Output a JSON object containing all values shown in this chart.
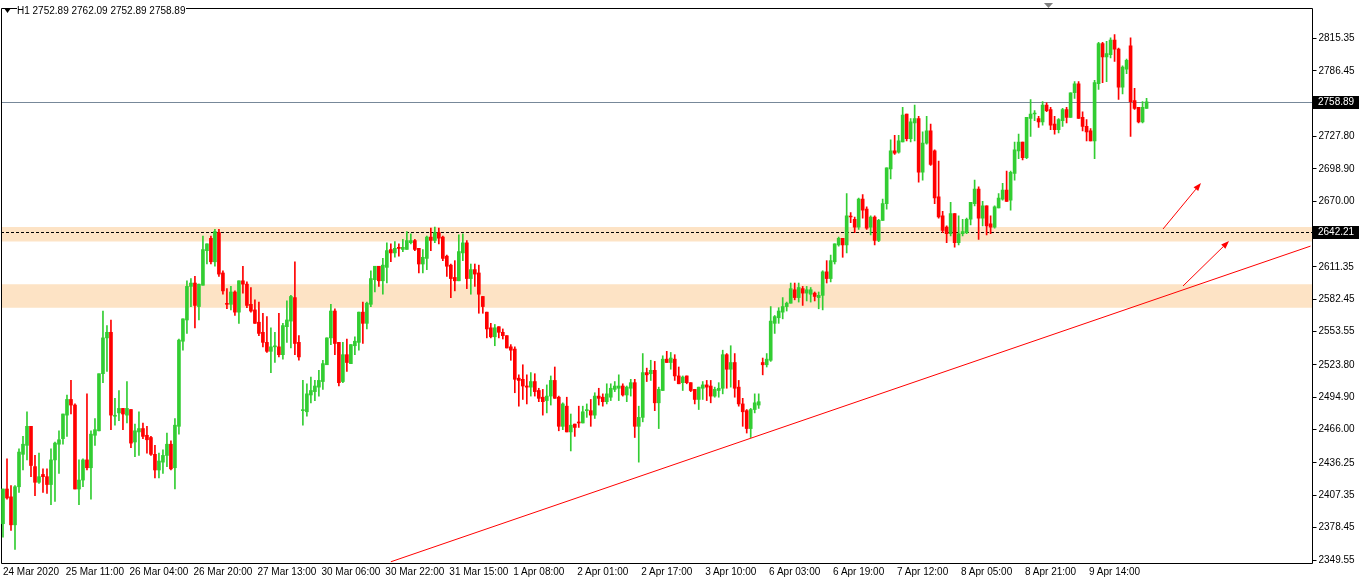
{
  "chart_data": {
    "type": "candlestick",
    "title": "H1 2752.89 2762.09 2752.89 2758.89",
    "categories": [
      null,
      null,
      null,
      null,
      null,
      null,
      null,
      "24 Mar 2020",
      null,
      null,
      null,
      null,
      null,
      null,
      null,
      null,
      null,
      null,
      null,
      null,
      null,
      null,
      null,
      "25 Mar 11:00",
      null,
      null,
      null,
      null,
      null,
      null,
      null,
      null,
      null,
      null,
      null,
      null,
      null,
      null,
      null,
      "26 Mar 04:00",
      null,
      null,
      null,
      null,
      null,
      null,
      null,
      null,
      null,
      null,
      null,
      null,
      null,
      null,
      null,
      "26 Mar 20:00",
      null,
      null,
      null,
      null,
      null,
      null,
      null,
      null,
      null,
      null,
      null,
      null,
      null,
      null,
      null,
      "27 Mar 13:00",
      null,
      null,
      null,
      null,
      null,
      null,
      null,
      null,
      null,
      null,
      null,
      null,
      null,
      null,
      null,
      "30 Mar 06:00",
      null,
      null,
      null,
      null,
      null,
      null,
      null,
      null,
      null,
      null,
      null,
      null,
      null,
      null,
      null,
      "30 Mar 22:00",
      null,
      null,
      null,
      null,
      null,
      null,
      null,
      null,
      null,
      null,
      null,
      null,
      null,
      null,
      null,
      "31 Mar 15:00",
      null,
      null,
      null,
      null,
      null,
      null,
      null,
      null,
      null,
      null,
      null,
      null,
      null,
      null,
      "1 Apr 08:00",
      null,
      null,
      null,
      null,
      null,
      null,
      null,
      null,
      null,
      null,
      null,
      null,
      null,
      null,
      null,
      "2 Apr 01:00",
      null,
      null,
      null,
      null,
      null,
      null,
      null,
      null,
      null,
      null,
      null,
      null,
      null,
      null,
      null,
      "2 Apr 17:00",
      null,
      null,
      null,
      null,
      null,
      null,
      null,
      null,
      null,
      null,
      null,
      null,
      null,
      null,
      null,
      "3 Apr 10:00",
      null,
      null,
      null,
      null,
      null,
      null,
      null,
      null,
      null,
      null,
      null,
      null,
      null,
      null,
      null,
      "6 Apr 03:00",
      null,
      null,
      null,
      null,
      null,
      null,
      null,
      null,
      null,
      null,
      null,
      null,
      null,
      null,
      null,
      "6 Apr 19:00",
      null,
      null,
      null,
      null,
      null,
      null,
      null,
      null,
      null,
      null,
      null,
      null,
      null,
      null,
      null,
      "7 Apr 12:00",
      null,
      null,
      null,
      null,
      null,
      null,
      null,
      null,
      null,
      null,
      null,
      null,
      null,
      null,
      null,
      "8 Apr 05:00",
      null,
      null,
      null,
      null,
      null,
      null,
      null,
      null,
      null,
      null,
      null,
      null,
      null,
      null,
      null,
      "8 Apr 21:00",
      null,
      null,
      null,
      null,
      null,
      null,
      null,
      null,
      null,
      null,
      null,
      null,
      null,
      null,
      null,
      "9 Apr 14:00",
      null,
      null,
      null,
      null,
      null,
      null,
      null,
      null,
      null,
      null,
      null,
      null,
      null,
      null,
      null,
      null,
      null,
      null,
      null,
      null,
      null,
      null,
      null,
      null,
      null,
      null,
      null,
      null,
      null,
      null,
      null,
      null,
      null,
      null,
      null,
      null,
      null,
      null,
      null,
      null,
      null,
      null,
      null,
      null,
      null,
      null,
      null,
      null,
      null
    ],
    "ohlc": [
      [
        2382,
        2413,
        2370,
        2413
      ],
      [
        2413,
        2440,
        2404,
        2405
      ],
      [
        2406,
        2416,
        2376,
        2381
      ],
      [
        2381,
        2416,
        2359,
        2415
      ],
      [
        2415,
        2449,
        2410,
        2446
      ],
      [
        2444,
        2460,
        2430,
        2453
      ],
      [
        2452,
        2482,
        2439,
        2469
      ],
      [
        2469,
        2469,
        2424,
        2434
      ],
      [
        2433,
        2443,
        2407,
        2419
      ],
      [
        2419,
        2445,
        2418,
        2424
      ],
      [
        2426,
        2431,
        2410,
        2424
      ],
      [
        2424,
        2431,
        2409,
        2417
      ],
      [
        2417,
        2449,
        2399,
        2439
      ],
      [
        2439,
        2455,
        2402,
        2454
      ],
      [
        2453,
        2465,
        2427,
        2457
      ],
      [
        2458,
        2480,
        2453,
        2480
      ],
      [
        2479,
        2497,
        2460,
        2493
      ],
      [
        2493,
        2510,
        2480,
        2488
      ],
      [
        2488,
        2489,
        2413,
        2413
      ],
      [
        2413,
        2439,
        2399,
        2421
      ],
      [
        2421,
        2440,
        2415,
        2439
      ],
      [
        2439,
        2498,
        2430,
        2432
      ],
      [
        2432,
        2465,
        2404,
        2462
      ],
      [
        2461,
        2476,
        2452,
        2466
      ],
      [
        2465,
        2516,
        2465,
        2516
      ],
      [
        2516,
        2572,
        2508,
        2548
      ],
      [
        2548,
        2559,
        2518,
        2553
      ],
      [
        2553,
        2564,
        2466,
        2479
      ],
      [
        2478,
        2494,
        2470,
        2478
      ],
      [
        2481,
        2501,
        2474,
        2485
      ],
      [
        2485,
        2485,
        2466,
        2480
      ],
      [
        2479,
        2509,
        2472,
        2485
      ],
      [
        2484,
        2484,
        2450,
        2454
      ],
      [
        2455,
        2471,
        2442,
        2465
      ],
      [
        2464,
        2482,
        2443,
        2467
      ],
      [
        2467,
        2472,
        2458,
        2460
      ],
      [
        2461,
        2469,
        2445,
        2457
      ],
      [
        2459,
        2460,
        2443,
        2444
      ],
      [
        2444,
        2452,
        2423,
        2430
      ],
      [
        2430,
        2445,
        2423,
        2438
      ],
      [
        2437,
        2448,
        2427,
        2443
      ],
      [
        2443,
        2463,
        2433,
        2453
      ],
      [
        2453,
        2456,
        2430,
        2431
      ],
      [
        2432,
        2476,
        2413,
        2470
      ],
      [
        2469,
        2547,
        2462,
        2546
      ],
      [
        2545,
        2565,
        2537,
        2565
      ],
      [
        2564,
        2599,
        2552,
        2594
      ],
      [
        2594,
        2601,
        2576,
        2597
      ],
      [
        2597,
        2603,
        2557,
        2577
      ],
      [
        2576,
        2596,
        2564,
        2596
      ],
      [
        2595,
        2639,
        2595,
        2627
      ],
      [
        2626,
        2632,
        2614,
        2632
      ],
      [
        2637,
        2639,
        2614,
        2616
      ],
      [
        2616,
        2645,
        2612,
        2643
      ],
      [
        2642,
        2645,
        2603,
        2605
      ],
      [
        2606,
        2608,
        2587,
        2590
      ],
      [
        2578,
        2592,
        2574,
        2578
      ],
      [
        2578,
        2594,
        2573,
        2589
      ],
      [
        2589,
        2590,
        2568,
        2571
      ],
      [
        2571,
        2599,
        2561,
        2599
      ],
      [
        2599,
        2612,
        2588,
        2596
      ],
      [
        2596,
        2598,
        2575,
        2577
      ],
      [
        2578,
        2593,
        2571,
        2572
      ],
      [
        2573,
        2582,
        2561,
        2561
      ],
      [
        2562,
        2580,
        2550,
        2552
      ],
      [
        2553,
        2570,
        2540,
        2544
      ],
      [
        2544,
        2567,
        2535,
        2536
      ],
      [
        2536,
        2557,
        2517,
        2540
      ],
      [
        2540,
        2553,
        2526,
        2540
      ],
      [
        2540,
        2570,
        2531,
        2533
      ],
      [
        2533,
        2561,
        2529,
        2559
      ],
      [
        2558,
        2581,
        2544,
        2564
      ],
      [
        2563,
        2586,
        2539,
        2585
      ],
      [
        2584,
        2616,
        2533,
        2543
      ],
      [
        2544,
        2550,
        2528,
        2531
      ],
      [
        2483,
        2510,
        2470,
        2483
      ],
      [
        2482,
        2507,
        2478,
        2498
      ],
      [
        2497,
        2513,
        2490,
        2501
      ],
      [
        2500,
        2510,
        2492,
        2505
      ],
      [
        2504,
        2519,
        2496,
        2510
      ],
      [
        2509,
        2528,
        2502,
        2525
      ],
      [
        2524,
        2548,
        2524,
        2548
      ],
      [
        2548,
        2578,
        2542,
        2572
      ],
      [
        2572,
        2574,
        2533,
        2543
      ],
      [
        2544,
        2544,
        2505,
        2508
      ],
      [
        2509,
        2544,
        2508,
        2533
      ],
      [
        2533,
        2547,
        2518,
        2526
      ],
      [
        2525,
        2542,
        2525,
        2542
      ],
      [
        2541,
        2549,
        2533,
        2545
      ],
      [
        2544,
        2571,
        2537,
        2571
      ],
      [
        2571,
        2580,
        2543,
        2561
      ],
      [
        2561,
        2580,
        2556,
        2579
      ],
      [
        2578,
        2608,
        2576,
        2601
      ],
      [
        2600,
        2612,
        2589,
        2612
      ],
      [
        2612,
        2612,
        2594,
        2599
      ],
      [
        2599,
        2619,
        2587,
        2613
      ],
      [
        2611,
        2633,
        2597,
        2626
      ],
      [
        2627,
        2632,
        2616,
        2624
      ],
      [
        2624,
        2634,
        2620,
        2628
      ],
      [
        2628,
        2632,
        2621,
        2628
      ],
      [
        2627,
        2636,
        2625,
        2629
      ],
      [
        2627,
        2643,
        2627,
        2635
      ],
      [
        2633,
        2641,
        2632,
        2635
      ],
      [
        2635,
        2636,
        2626,
        2627
      ],
      [
        2628,
        2628,
        2606,
        2614
      ],
      [
        2614,
        2627,
        2606,
        2620
      ],
      [
        2619,
        2639,
        2609,
        2638
      ],
      [
        2638,
        2646,
        2626,
        2635
      ],
      [
        2635,
        2647,
        2633,
        2642
      ],
      [
        2642,
        2646,
        2632,
        2637
      ],
      [
        2638,
        2639,
        2617,
        2619
      ],
      [
        2621,
        2622,
        2603,
        2612
      ],
      [
        2613,
        2614,
        2584,
        2601
      ],
      [
        2602,
        2617,
        2590,
        2599
      ],
      [
        2599,
        2640,
        2599,
        2625
      ],
      [
        2624,
        2641,
        2617,
        2633
      ],
      [
        2633,
        2635,
        2592,
        2601
      ],
      [
        2601,
        2614,
        2587,
        2609
      ],
      [
        2609,
        2614,
        2594,
        2605
      ],
      [
        2606,
        2613,
        2570,
        2587
      ],
      [
        2585,
        2585,
        2570,
        2576
      ],
      [
        2571,
        2571,
        2548,
        2556
      ],
      [
        2557,
        2561,
        2548,
        2549
      ],
      [
        2549,
        2560,
        2541,
        2557
      ],
      [
        2558,
        2558,
        2548,
        2553
      ],
      [
        2553,
        2556,
        2547,
        2550
      ],
      [
        2550,
        2550,
        2539,
        2539
      ],
      [
        2540,
        2542,
        2528,
        2537
      ],
      [
        2538,
        2540,
        2499,
        2511
      ],
      [
        2512,
        2515,
        2487,
        2510
      ],
      [
        2511,
        2524,
        2493,
        2505
      ],
      [
        2505,
        2515,
        2489,
        2504
      ],
      [
        2504,
        2517,
        2496,
        2509
      ],
      [
        2509,
        2516,
        2496,
        2500
      ],
      [
        2501,
        2503,
        2491,
        2494
      ],
      [
        2495,
        2502,
        2479,
        2491
      ],
      [
        2492,
        2506,
        2481,
        2496
      ],
      [
        2496,
        2514,
        2488,
        2510
      ],
      [
        2510,
        2522,
        2494,
        2494
      ],
      [
        2495,
        2496,
        2465,
        2469
      ],
      [
        2469,
        2490,
        2466,
        2489
      ],
      [
        2487,
        2495,
        2464,
        2464
      ],
      [
        2464,
        2480,
        2447,
        2470
      ],
      [
        2471,
        2471,
        2460,
        2468
      ],
      [
        2472,
        2487,
        2468,
        2472
      ],
      [
        2472,
        2487,
        2472,
        2482
      ],
      [
        2483,
        2489,
        2477,
        2483
      ],
      [
        2483,
        2493,
        2469,
        2479
      ],
      [
        2479,
        2499,
        2476,
        2496
      ],
      [
        2496,
        2503,
        2488,
        2494
      ],
      [
        2495,
        2498,
        2487,
        2491
      ],
      [
        2491,
        2507,
        2489,
        2498
      ],
      [
        2495,
        2507,
        2492,
        2503
      ],
      [
        2502,
        2509,
        2500,
        2505
      ],
      [
        2503,
        2515,
        2492,
        2505
      ],
      [
        2505,
        2507,
        2496,
        2497
      ],
      [
        2497,
        2505,
        2491,
        2504
      ],
      [
        2503,
        2511,
        2496,
        2508
      ],
      [
        2508,
        2511,
        2459,
        2469
      ],
      [
        2469,
        2487,
        2437,
        2477
      ],
      [
        2477,
        2534,
        2473,
        2517
      ],
      [
        2517,
        2521,
        2509,
        2515
      ],
      [
        2516,
        2528,
        2510,
        2519
      ],
      [
        2519,
        2527,
        2483,
        2490
      ],
      [
        2490,
        2504,
        2467,
        2502
      ],
      [
        2501,
        2532,
        2501,
        2529
      ],
      [
        2529,
        2536,
        2526,
        2526
      ],
      [
        2526,
        2535,
        2520,
        2530
      ],
      [
        2529,
        2533,
        2510,
        2514
      ],
      [
        2514,
        2522,
        2507,
        2507
      ],
      [
        2508,
        2514,
        2501,
        2513
      ],
      [
        2514,
        2514,
        2507,
        2508
      ],
      [
        2508,
        2508,
        2500,
        2501
      ],
      [
        2502,
        2502,
        2489,
        2493
      ],
      [
        2493,
        2504,
        2484,
        2504
      ],
      [
        2503,
        2509,
        2493,
        2506
      ],
      [
        2506,
        2510,
        2492,
        2504
      ],
      [
        2505,
        2510,
        2490,
        2496
      ],
      [
        2496,
        2504,
        2495,
        2502
      ],
      [
        2501,
        2508,
        2495,
        2503
      ],
      [
        2503,
        2537,
        2498,
        2533
      ],
      [
        2533,
        2534,
        2503,
        2520
      ],
      [
        2520,
        2541,
        2504,
        2526
      ],
      [
        2526,
        2534,
        2495,
        2503
      ],
      [
        2504,
        2510,
        2487,
        2489
      ],
      [
        2489,
        2494,
        2469,
        2482
      ],
      [
        2483,
        2484,
        2463,
        2467
      ],
      [
        2467,
        2485,
        2459,
        2484
      ],
      [
        2484,
        2498,
        2481,
        2490
      ],
      [
        2488,
        2498,
        2485,
        2491
      ],
      [
        2526,
        2530,
        2515,
        2524
      ],
      [
        2524,
        2534,
        2522,
        2529
      ],
      [
        2528,
        2576,
        2527,
        2563
      ],
      [
        2561,
        2568,
        2552,
        2567
      ],
      [
        2566,
        2575,
        2561,
        2572
      ],
      [
        2571,
        2584,
        2565,
        2576
      ],
      [
        2576,
        2580,
        2572,
        2579
      ],
      [
        2579,
        2597,
        2579,
        2592
      ],
      [
        2591,
        2597,
        2582,
        2584
      ],
      [
        2584,
        2597,
        2580,
        2593
      ],
      [
        2592,
        2594,
        2577,
        2588
      ],
      [
        2588,
        2594,
        2581,
        2591
      ],
      [
        2587,
        2593,
        2580,
        2591
      ],
      [
        2588,
        2589,
        2581,
        2585
      ],
      [
        2584,
        2589,
        2574,
        2586
      ],
      [
        2586,
        2608,
        2573,
        2607
      ],
      [
        2607,
        2617,
        2597,
        2601
      ],
      [
        2601,
        2622,
        2598,
        2617
      ],
      [
        2616,
        2632,
        2614,
        2632
      ],
      [
        2631,
        2638,
        2630,
        2637
      ],
      [
        2637,
        2637,
        2620,
        2631
      ],
      [
        2631,
        2677,
        2624,
        2657
      ],
      [
        2656,
        2660,
        2651,
        2656
      ],
      [
        2654,
        2656,
        2642,
        2647
      ],
      [
        2647,
        2673,
        2645,
        2672
      ],
      [
        2672,
        2676,
        2655,
        2662
      ],
      [
        2663,
        2665,
        2645,
        2646
      ],
      [
        2647,
        2657,
        2640,
        2656
      ],
      [
        2656,
        2657,
        2631,
        2635
      ],
      [
        2635,
        2654,
        2634,
        2653
      ],
      [
        2653,
        2672,
        2653,
        2668
      ],
      [
        2668,
        2700,
        2663,
        2700
      ],
      [
        2699,
        2725,
        2690,
        2715
      ],
      [
        2715,
        2729,
        2712,
        2713
      ],
      [
        2714,
        2729,
        2713,
        2724
      ],
      [
        2723,
        2754,
        2723,
        2747
      ],
      [
        2748,
        2748,
        2724,
        2726
      ],
      [
        2726,
        2744,
        2723,
        2741
      ],
      [
        2740,
        2756,
        2724,
        2744
      ],
      [
        2744,
        2746,
        2687,
        2696
      ],
      [
        2696,
        2732,
        2689,
        2722
      ],
      [
        2722,
        2746,
        2721,
        2733
      ],
      [
        2733,
        2739,
        2702,
        2703
      ],
      [
        2715,
        2716,
        2668,
        2673
      ],
      [
        2674,
        2706,
        2655,
        2656
      ],
      [
        2657,
        2661,
        2642,
        2644
      ],
      [
        2647,
        2648,
        2633,
        2641
      ],
      [
        2641,
        2669,
        2639,
        2659
      ],
      [
        2659,
        2659,
        2629,
        2633
      ],
      [
        2633,
        2657,
        2631,
        2641
      ],
      [
        2641,
        2654,
        2639,
        2643
      ],
      [
        2642,
        2655,
        2641,
        2654
      ],
      [
        2654,
        2669,
        2649,
        2669
      ],
      [
        2668,
        2689,
        2666,
        2681
      ],
      [
        2681,
        2683,
        2636,
        2655
      ],
      [
        2655,
        2670,
        2648,
        2666
      ],
      [
        2666,
        2666,
        2640,
        2648
      ],
      [
        2650,
        2657,
        2641,
        2647
      ],
      [
        2647,
        2666,
        2646,
        2665
      ],
      [
        2664,
        2677,
        2664,
        2673
      ],
      [
        2672,
        2686,
        2671,
        2680
      ],
      [
        2680,
        2697,
        2670,
        2670
      ],
      [
        2671,
        2697,
        2662,
        2696
      ],
      [
        2695,
        2723,
        2689,
        2716
      ],
      [
        2715,
        2730,
        2708,
        2723
      ],
      [
        2723,
        2723,
        2707,
        2709
      ],
      [
        2709,
        2745,
        2708,
        2745
      ],
      [
        2744,
        2761,
        2728,
        2748
      ],
      [
        2748,
        2751,
        2742,
        2748
      ],
      [
        2744,
        2746,
        2736,
        2741
      ],
      [
        2741,
        2759,
        2738,
        2756
      ],
      [
        2756,
        2758,
        2750,
        2751
      ],
      [
        2752,
        2754,
        2734,
        2738
      ],
      [
        2739,
        2746,
        2730,
        2734
      ],
      [
        2734,
        2744,
        2731,
        2743
      ],
      [
        2742,
        2753,
        2737,
        2752
      ],
      [
        2752,
        2754,
        2740,
        2745
      ],
      [
        2745,
        2767,
        2745,
        2767
      ],
      [
        2767,
        2777,
        2762,
        2775
      ],
      [
        2775,
        2777,
        2744,
        2744
      ],
      [
        2745,
        2750,
        2733,
        2737
      ],
      [
        2737,
        2743,
        2724,
        2732
      ],
      [
        2733,
        2735,
        2724,
        2724
      ],
      [
        2724,
        2778,
        2708,
        2776
      ],
      [
        2775,
        2812,
        2770,
        2811
      ],
      [
        2811,
        2812,
        2776,
        2799
      ],
      [
        2799,
        2813,
        2777,
        2802
      ],
      [
        2801,
        2816,
        2798,
        2814
      ],
      [
        2814,
        2819,
        2795,
        2806
      ],
      [
        2806,
        2807,
        2761,
        2772
      ],
      [
        2772,
        2791,
        2766,
        2790
      ],
      [
        2788,
        2797,
        2784,
        2796
      ],
      [
        2809,
        2816,
        2728,
        2759
      ],
      [
        2760,
        2771,
        2752,
        2753
      ],
      [
        2754,
        2754,
        2740,
        2741
      ],
      [
        2741,
        2759,
        2740,
        2754
      ],
      [
        2752.89,
        2762.09,
        2752.89,
        2758.89
      ],
      null,
      null,
      null,
      null,
      null,
      null,
      null,
      null,
      null,
      null,
      null,
      null,
      null,
      null,
      null,
      null,
      null,
      null,
      null,
      null,
      null,
      null,
      null,
      null,
      null,
      null,
      null,
      null,
      null,
      null,
      null,
      null,
      null,
      null,
      null,
      null,
      null,
      null,
      null,
      null,
      null
    ],
    "colors": [
      "#32cd32",
      "#ff0000",
      "#ff0000",
      "#32cd32",
      "#32cd32",
      "#32cd32",
      "#32cd32",
      "#ff0000",
      "#ff0000",
      "#32cd32",
      "#ff0000",
      "#ff0000",
      "#32cd32",
      "#32cd32",
      "#32cd32",
      "#32cd32",
      "#32cd32",
      "#ff0000",
      "#ff0000",
      "#32cd32",
      "#32cd32",
      "#ff0000",
      "#32cd32",
      "#32cd32",
      "#32cd32",
      "#32cd32",
      "#32cd32",
      "#ff0000",
      "#32cd32",
      "#32cd32",
      "#ff0000",
      "#32cd32",
      "#ff0000",
      "#32cd32",
      "#32cd32",
      "#ff0000",
      "#ff0000",
      "#ff0000",
      "#ff0000",
      "#32cd32",
      "#32cd32",
      "#32cd32",
      "#ff0000",
      "#32cd32",
      "#32cd32",
      "#32cd32",
      "#32cd32",
      "#32cd32",
      "#ff0000",
      "#32cd32",
      "#32cd32",
      "#32cd32",
      "#ff0000",
      "#32cd32",
      "#ff0000",
      "#ff0000",
      "#ff0000",
      "#32cd32",
      "#ff0000",
      "#32cd32",
      "#ff0000",
      "#ff0000",
      "#ff0000",
      "#ff0000",
      "#ff0000",
      "#ff0000",
      "#ff0000",
      "#32cd32",
      "#32cd32",
      "#ff0000",
      "#32cd32",
      "#32cd32",
      "#32cd32",
      "#ff0000",
      "#ff0000",
      "#32cd32",
      "#32cd32",
      "#32cd32",
      "#32cd32",
      "#32cd32",
      "#32cd32",
      "#32cd32",
      "#32cd32",
      "#ff0000",
      "#ff0000",
      "#32cd32",
      "#ff0000",
      "#32cd32",
      "#32cd32",
      "#32cd32",
      "#ff0000",
      "#32cd32",
      "#32cd32",
      "#32cd32",
      "#ff0000",
      "#32cd32",
      "#32cd32",
      "#ff0000",
      "#32cd32",
      "#ff0000",
      "#32cd32",
      "#32cd32",
      "#32cd32",
      "#ff0000",
      "#ff0000",
      "#32cd32",
      "#32cd32",
      "#ff0000",
      "#32cd32",
      "#ff0000",
      "#ff0000",
      "#ff0000",
      "#ff0000",
      "#ff0000",
      "#32cd32",
      "#32cd32",
      "#ff0000",
      "#32cd32",
      "#ff0000",
      "#ff0000",
      "#ff0000",
      "#ff0000",
      "#ff0000",
      "#32cd32",
      "#ff0000",
      "#ff0000",
      "#ff0000",
      "#ff0000",
      "#ff0000",
      "#ff0000",
      "#ff0000",
      "#ff0000",
      "#32cd32",
      "#ff0000",
      "#ff0000",
      "#ff0000",
      "#32cd32",
      "#32cd32",
      "#ff0000",
      "#ff0000",
      "#32cd32",
      "#ff0000",
      "#32cd32",
      "#ff0000",
      "#ff0000",
      "#32cd32",
      "#32cd32",
      "#ff0000",
      "#32cd32",
      "#ff0000",
      "#ff0000",
      "#32cd32",
      "#32cd32",
      "#32cd32",
      "#32cd32",
      "#ff0000",
      "#32cd32",
      "#32cd32",
      "#ff0000",
      "#32cd32",
      "#32cd32",
      "#ff0000",
      "#32cd32",
      "#ff0000",
      "#32cd32",
      "#32cd32",
      "#ff0000",
      "#32cd32",
      "#ff0000",
      "#ff0000",
      "#32cd32",
      "#ff0000",
      "#ff0000",
      "#ff0000",
      "#32cd32",
      "#32cd32",
      "#ff0000",
      "#ff0000",
      "#32cd32",
      "#32cd32",
      "#32cd32",
      "#ff0000",
      "#32cd32",
      "#ff0000",
      "#ff0000",
      "#ff0000",
      "#ff0000",
      "#32cd32",
      "#32cd32",
      "#32cd32",
      "#ff0000",
      "#32cd32",
      "#32cd32",
      "#32cd32",
      "#32cd32",
      "#32cd32",
      "#32cd32",
      "#32cd32",
      "#ff0000",
      "#32cd32",
      "#ff0000",
      "#32cd32",
      "#32cd32",
      "#ff0000",
      "#32cd32",
      "#32cd32",
      "#ff0000",
      "#32cd32",
      "#32cd32",
      "#32cd32",
      "#ff0000",
      "#32cd32",
      "#ff0000",
      "#ff0000",
      "#32cd32",
      "#ff0000",
      "#ff0000",
      "#32cd32",
      "#ff0000",
      "#32cd32",
      "#32cd32",
      "#32cd32",
      "#32cd32",
      "#ff0000",
      "#32cd32",
      "#32cd32",
      "#ff0000",
      "#32cd32",
      "#32cd32",
      "#ff0000",
      "#32cd32",
      "#32cd32",
      "#ff0000",
      "#ff0000",
      "#ff0000",
      "#ff0000",
      "#ff0000",
      "#32cd32",
      "#ff0000",
      "#32cd32",
      "#32cd32",
      "#32cd32",
      "#32cd32",
      "#32cd32",
      "#ff0000",
      "#32cd32",
      "#ff0000",
      "#ff0000",
      "#32cd32",
      "#32cd32",
      "#32cd32",
      "#ff0000",
      "#32cd32",
      "#32cd32",
      "#32cd32",
      "#ff0000",
      "#32cd32",
      "#32cd32",
      "#32cd32",
      "#ff0000",
      "#32cd32",
      "#ff0000",
      "#ff0000",
      "#ff0000",
      "#32cd32",
      "#32cd32",
      "#ff0000",
      "#32cd32",
      "#32cd32",
      "#ff0000",
      "#ff0000",
      "#ff0000",
      "#ff0000",
      "#32cd32",
      "#32cd32",
      "#ff0000",
      "#32cd32",
      "#32cd32",
      "#ff0000",
      "#ff0000",
      "#32cd32",
      "#32cd32",
      "#ff0000",
      "#ff0000",
      "#ff0000",
      "#32cd32",
      "#32cd32",
      null,
      null,
      null,
      null,
      null,
      null,
      null,
      null,
      null,
      null,
      null,
      null,
      null,
      null,
      null,
      null,
      null,
      null,
      null,
      null,
      null,
      null,
      null,
      null,
      null,
      null,
      null,
      null,
      null,
      null,
      null,
      null,
      null,
      null,
      null,
      null,
      null,
      null,
      null,
      null,
      null
    ],
    "series": [
      {
        "type": "line",
        "color": "#ff0000",
        "values": [
          null,
          null,
          null,
          null,
          null,
          null,
          null,
          null,
          null,
          null,
          null,
          null,
          null,
          null,
          null,
          null,
          null,
          null,
          null,
          null,
          null,
          null,
          null,
          null,
          null,
          null,
          null,
          null,
          null,
          null,
          null,
          null,
          null,
          null,
          null,
          null,
          null,
          null,
          null,
          null,
          null,
          null,
          null,
          null,
          null,
          null,
          null,
          null,
          null,
          null,
          null,
          null,
          null,
          null,
          null,
          null,
          null,
          null,
          null,
          null,
          null,
          null,
          null,
          null,
          null,
          null,
          null,
          null,
          null,
          null,
          null,
          null,
          null,
          null,
          null,
          null,
          null,
          null,
          null,
          null,
          null,
          null,
          null,
          null,
          null,
          null,
          null,
          null,
          null,
          null,
          null,
          null,
          null,
          null,
          null,
          null,
          null,
          2348,
          null,
          null,
          null,
          null,
          null,
          null,
          null,
          null,
          null,
          null,
          null,
          null,
          null,
          null,
          null,
          null,
          null,
          null,
          null,
          null,
          null,
          null,
          null,
          null,
          null,
          null,
          null,
          null,
          null,
          null,
          null,
          null,
          null,
          null,
          null,
          null,
          null,
          null,
          null,
          null,
          null,
          null,
          null,
          null,
          null,
          null,
          null,
          null,
          null,
          null,
          null,
          null,
          null,
          null,
          null,
          null,
          null,
          null,
          null,
          null,
          null,
          null,
          null,
          null,
          null,
          null,
          null,
          null,
          null,
          null,
          null,
          null,
          null,
          null,
          null,
          null,
          null,
          null,
          null,
          null,
          null,
          null,
          null,
          null,
          null,
          null,
          null,
          null,
          null,
          null,
          null,
          null,
          null,
          null,
          null,
          null,
          null,
          null,
          null,
          null,
          null,
          null,
          null,
          null,
          null,
          null,
          null,
          null,
          null,
          null,
          null,
          null,
          null,
          null,
          null,
          null,
          null,
          null,
          null,
          null,
          null,
          null,
          null,
          null,
          null,
          null,
          null,
          null,
          null,
          null,
          null,
          null,
          null,
          null,
          null,
          null,
          null,
          null,
          null,
          null,
          null,
          null,
          null,
          null,
          null,
          null,
          null,
          null,
          null,
          null,
          null,
          null,
          null,
          null,
          null,
          null,
          null,
          null,
          null,
          null,
          null,
          null,
          null,
          null,
          null,
          null,
          null,
          null,
          null,
          null,
          null,
          null,
          null,
          null,
          null,
          null,
          null,
          null,
          null,
          null,
          null,
          null,
          null,
          null,
          null,
          null,
          null,
          null,
          null,
          null,
          null,
          null,
          null,
          null,
          null,
          null,
          null,
          null,
          null,
          null,
          null,
          null,
          null,
          null,
          null,
          null,
          null,
          null,
          null,
          null,
          null,
          null,
          null,
          null,
          null,
          null,
          null,
          null,
          null,
          null,
          null,
          null,
          null,
          null,
          null,
          null,
          null,
          null,
          null,
          2630
        ]
      }
    ],
    "ylim": [
      2346.9,
      2842.7
    ],
    "yticks": [
      2815.35,
      2786.45,
      {
        "value": 2727.8,
        "label": "2727.80"
      },
      {
        "value": 2698.9,
        "label": "2698.90"
      },
      {
        "value": 2670,
        "label": "2670.00"
      },
      2611.35,
      2582.45,
      2553.55,
      {
        "value": 2523.8,
        "label": "2523.80"
      },
      {
        "value": 2494.9,
        "label": "2494.90"
      },
      {
        "value": 2466,
        "label": "2466.00"
      },
      2436.25,
      2407.35,
      2378.45,
      2349.55
    ],
    "ref_lines": [
      {
        "axis": "y",
        "value": 2758.89,
        "label": "2758.89",
        "color": "#778899",
        "line_style": "solid"
      },
      {
        "axis": "y",
        "value": 2642.21,
        "label": "2642.21",
        "color": "#000000",
        "line_style": "dashed"
      }
    ],
    "bands": [
      {
        "axis": "y",
        "from": 2634,
        "to": 2647,
        "color": "#fde3c5"
      },
      {
        "axis": "y",
        "from": 2575,
        "to": 2596,
        "color": "#fde3c5"
      }
    ]
  }
}
